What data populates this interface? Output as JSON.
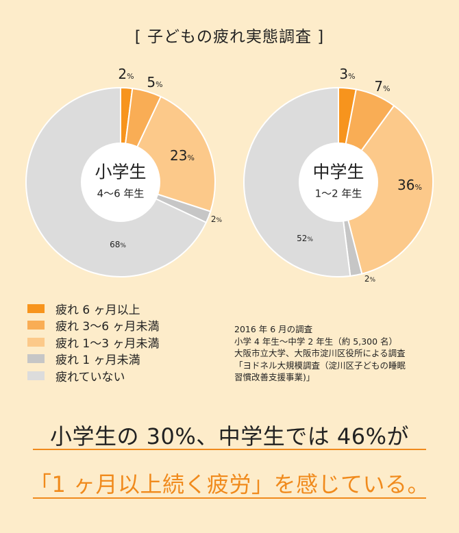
{
  "title": "[ 子どもの疲れ実態調査 ]",
  "chart_data": [
    {
      "type": "pie",
      "variant": "donut",
      "center_label": "小学生",
      "center_sublabel": "4〜6 年生",
      "categories": [
        "疲れ 6 ヶ月以上",
        "疲れ 3〜6 ヶ月未満",
        "疲れ 1〜3 ヶ月未満",
        "疲れ 1 ヶ月未満",
        "疲れていない"
      ],
      "values": [
        2,
        5,
        23,
        2,
        68
      ],
      "labels": [
        "2",
        "5",
        "23",
        "2",
        "68"
      ]
    },
    {
      "type": "pie",
      "variant": "donut",
      "center_label": "中学生",
      "center_sublabel": "1〜2 年生",
      "categories": [
        "疲れ 6 ヶ月以上",
        "疲れ 3〜6 ヶ月未満",
        "疲れ 1〜3 ヶ月未満",
        "疲れ 1 ヶ月未満",
        "疲れていない"
      ],
      "values": [
        3,
        7,
        36,
        2,
        52
      ],
      "labels": [
        "3",
        "7",
        "36",
        "2",
        "52"
      ]
    }
  ],
  "percent_unit": "%",
  "colors": [
    "#f7941d",
    "#f9ad55",
    "#fcc98a",
    "#c6c6c6",
    "#dcdcdc"
  ],
  "legend": {
    "placement": "bottom-left",
    "items": [
      "疲れ 6 ヶ月以上",
      "疲れ 3〜6 ヶ月未満",
      "疲れ 1〜3 ヶ月未満",
      "疲れ 1 ヶ月未満",
      "疲れていない"
    ]
  },
  "note": {
    "lines": [
      "2016 年 6 月の調査",
      "小学 4 年生〜中学 2 年生（約 5,300 名）",
      "大阪市立大学、大阪市淀川区役所による調査",
      "「ヨドネル大規模調査（淀川区子どもの睡眠",
      "習慣改善支援事業)」"
    ]
  },
  "headline": {
    "line1": "小学生の 30%、中学生では 46%が",
    "line2": "「1 ヶ月以上続く疲労」を感じている。"
  }
}
